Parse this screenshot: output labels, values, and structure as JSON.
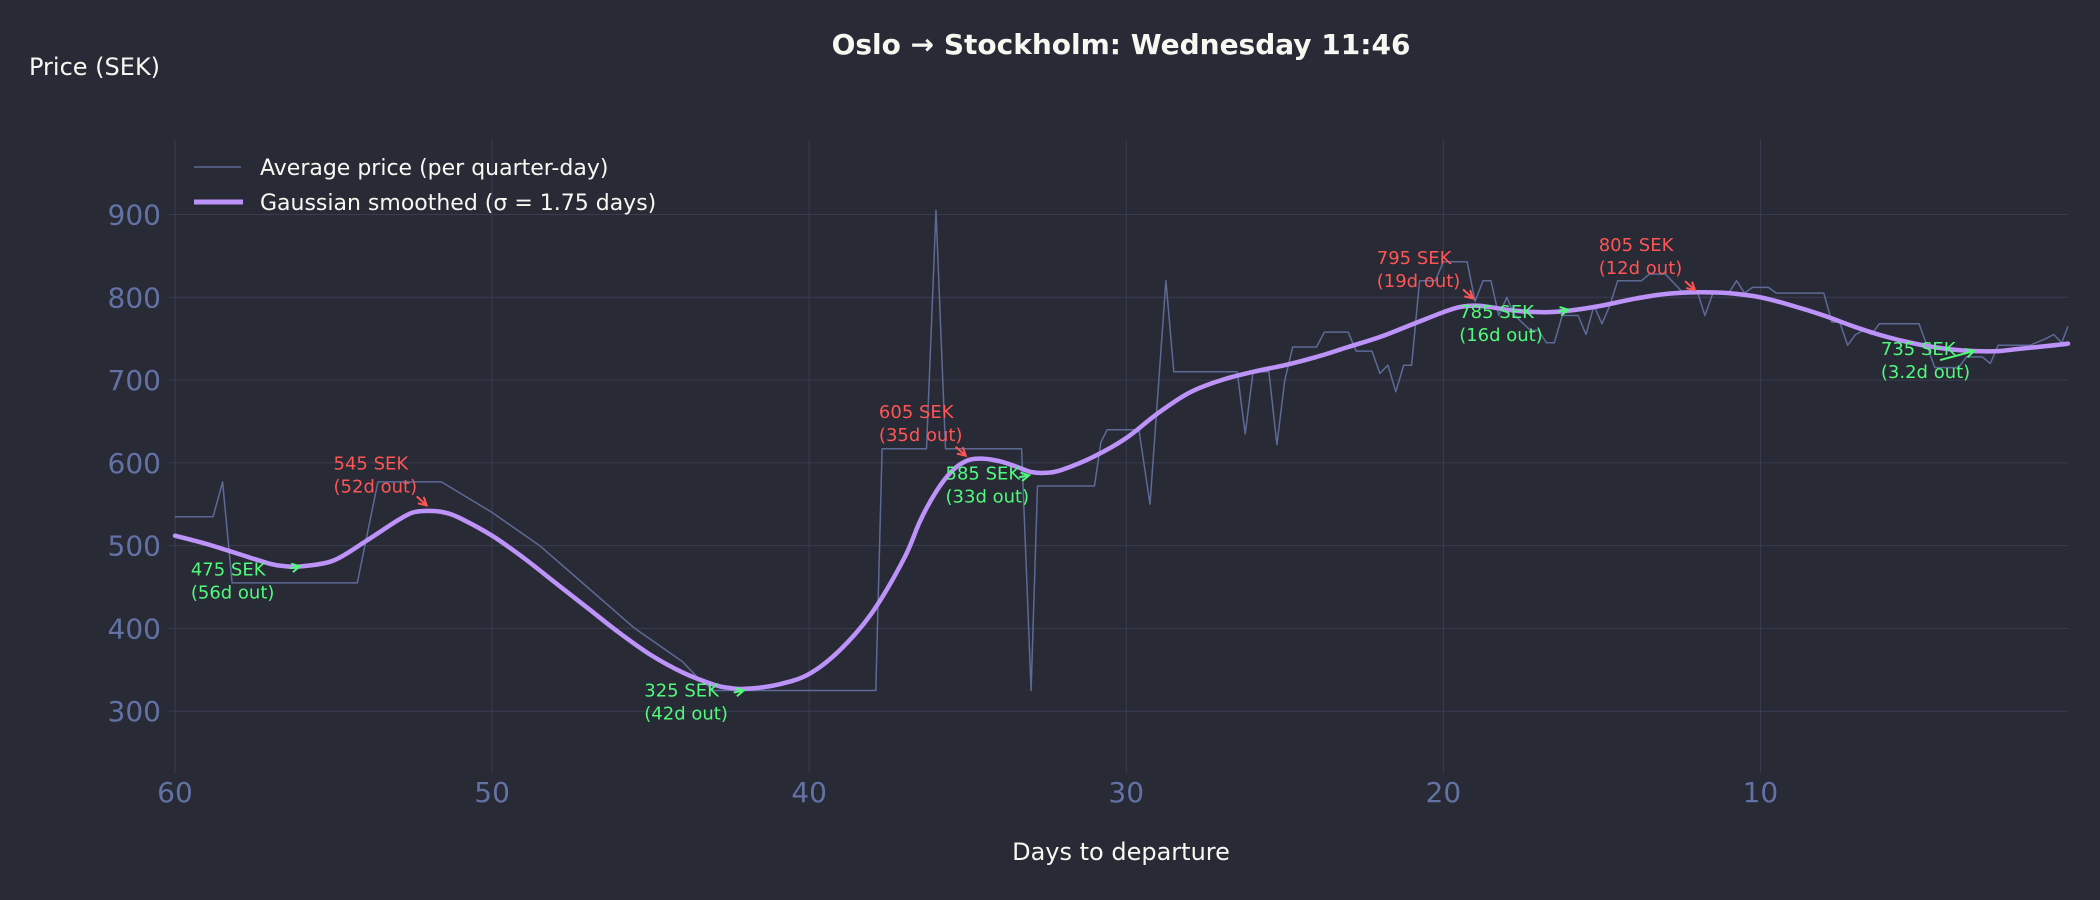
{
  "chart_data": {
    "type": "line",
    "title": "Oslo → Stockholm: Wednesday 11:46",
    "xlabel": "Days to departure",
    "ylabel": "Price (SEK)",
    "xlim": [
      60,
      0.3
    ],
    "ylim": [
      235,
      990
    ],
    "x_ticks": [
      60,
      50,
      40,
      30,
      20,
      10
    ],
    "y_ticks": [
      300,
      400,
      500,
      600,
      700,
      800,
      900
    ],
    "grid": true,
    "legend_position": "top-left",
    "colors": {
      "background": "#282a36",
      "grid": "#3a3d52",
      "raw": "#5d6a96",
      "smooth": "#bd93f9",
      "high": "#ff5555",
      "low": "#50fa7b",
      "text": "#f8f8f2",
      "tick": "#6272a4"
    },
    "series": [
      {
        "name": "Average price (per quarter-day)",
        "style": "thin",
        "points": [
          [
            60,
            535
          ],
          [
            58.8,
            535
          ],
          [
            58.5,
            577
          ],
          [
            58.2,
            455
          ],
          [
            57.5,
            455
          ],
          [
            56,
            455
          ],
          [
            54.25,
            455
          ],
          [
            53.6,
            577
          ],
          [
            51.6,
            577
          ],
          [
            50,
            540
          ],
          [
            48.5,
            500
          ],
          [
            47,
            450
          ],
          [
            45.5,
            400
          ],
          [
            44,
            360
          ],
          [
            43.5,
            340
          ],
          [
            43.0,
            325
          ],
          [
            40,
            325
          ],
          [
            37.9,
            325
          ],
          [
            37.7,
            617
          ],
          [
            36.3,
            617
          ],
          [
            36.0,
            905
          ],
          [
            35.7,
            617
          ],
          [
            33.3,
            617
          ],
          [
            33.0,
            325
          ],
          [
            32.8,
            572
          ],
          [
            31.0,
            572
          ],
          [
            30.8,
            625
          ],
          [
            30.6,
            640
          ],
          [
            29.8,
            640
          ],
          [
            29.6,
            640
          ],
          [
            29.25,
            550
          ],
          [
            28.75,
            820
          ],
          [
            28.5,
            710
          ],
          [
            26.5,
            710
          ],
          [
            26.25,
            635
          ],
          [
            26.0,
            710
          ],
          [
            25.5,
            710
          ],
          [
            25.25,
            622
          ],
          [
            25.0,
            700
          ],
          [
            24.75,
            740
          ],
          [
            24.0,
            740
          ],
          [
            23.75,
            758
          ],
          [
            23.0,
            758
          ],
          [
            22.75,
            735
          ],
          [
            22.25,
            735
          ],
          [
            22.0,
            708
          ],
          [
            21.75,
            718
          ],
          [
            21.5,
            686
          ],
          [
            21.25,
            718
          ],
          [
            21.0,
            718
          ],
          [
            20.75,
            820
          ],
          [
            20.25,
            820
          ],
          [
            20.0,
            843
          ],
          [
            19.25,
            843
          ],
          [
            19.0,
            795
          ],
          [
            18.75,
            820
          ],
          [
            18.5,
            820
          ],
          [
            18.25,
            778
          ],
          [
            18.0,
            800
          ],
          [
            17.75,
            778
          ],
          [
            17.25,
            760
          ],
          [
            17.0,
            760
          ],
          [
            16.75,
            745
          ],
          [
            16.5,
            745
          ],
          [
            16.25,
            778
          ],
          [
            15.75,
            778
          ],
          [
            15.5,
            755
          ],
          [
            15.25,
            790
          ],
          [
            15.0,
            768
          ],
          [
            14.75,
            790
          ],
          [
            14.5,
            820
          ],
          [
            13.75,
            820
          ],
          [
            13.5,
            828
          ],
          [
            13.0,
            828
          ],
          [
            12.5,
            808
          ],
          [
            12.0,
            808
          ],
          [
            11.75,
            778
          ],
          [
            11.5,
            805
          ],
          [
            11.0,
            805
          ],
          [
            10.75,
            820
          ],
          [
            10.5,
            805
          ],
          [
            10.25,
            812
          ],
          [
            9.75,
            812
          ],
          [
            9.5,
            805
          ],
          [
            8.0,
            805
          ],
          [
            7.75,
            770
          ],
          [
            7.5,
            770
          ],
          [
            7.25,
            742
          ],
          [
            7.0,
            755
          ],
          [
            6.75,
            760
          ],
          [
            6.5,
            755
          ],
          [
            6.25,
            768
          ],
          [
            5.0,
            768
          ],
          [
            4.75,
            742
          ],
          [
            4.5,
            715
          ],
          [
            4.25,
            715
          ],
          [
            3.75,
            715
          ],
          [
            3.5,
            728
          ],
          [
            3.0,
            728
          ],
          [
            2.75,
            720
          ],
          [
            2.5,
            742
          ],
          [
            2.0,
            742
          ],
          [
            1.5,
            742
          ],
          [
            1.0,
            750
          ],
          [
            0.75,
            755
          ],
          [
            0.5,
            745
          ],
          [
            0.3,
            765
          ]
        ]
      },
      {
        "name": "Gaussian smoothed (σ = 1.75 days)",
        "style": "thick",
        "points": [
          [
            60,
            512
          ],
          [
            59,
            502
          ],
          [
            58,
            490
          ],
          [
            57,
            478
          ],
          [
            56.5,
            475
          ],
          [
            56,
            475
          ],
          [
            55,
            482
          ],
          [
            54,
            505
          ],
          [
            53,
            530
          ],
          [
            52.5,
            540
          ],
          [
            52,
            542
          ],
          [
            51.5,
            540
          ],
          [
            51,
            533
          ],
          [
            50,
            512
          ],
          [
            49,
            485
          ],
          [
            48,
            455
          ],
          [
            47,
            425
          ],
          [
            46,
            395
          ],
          [
            45,
            368
          ],
          [
            44,
            347
          ],
          [
            43,
            332
          ],
          [
            42.5,
            328
          ],
          [
            42,
            327
          ],
          [
            41,
            332
          ],
          [
            40,
            345
          ],
          [
            39,
            375
          ],
          [
            38,
            420
          ],
          [
            37,
            485
          ],
          [
            36.5,
            530
          ],
          [
            36,
            565
          ],
          [
            35.5,
            590
          ],
          [
            35,
            603
          ],
          [
            34.5,
            605
          ],
          [
            34,
            602
          ],
          [
            33.5,
            596
          ],
          [
            33,
            589
          ],
          [
            32.5,
            588
          ],
          [
            32,
            592
          ],
          [
            31,
            608
          ],
          [
            30,
            630
          ],
          [
            29,
            660
          ],
          [
            28,
            685
          ],
          [
            27,
            700
          ],
          [
            26,
            710
          ],
          [
            25,
            718
          ],
          [
            24,
            728
          ],
          [
            23,
            740
          ],
          [
            22,
            752
          ],
          [
            21,
            767
          ],
          [
            20,
            782
          ],
          [
            19.5,
            788
          ],
          [
            19,
            790
          ],
          [
            18.5,
            788
          ],
          [
            18,
            785
          ],
          [
            17.5,
            783
          ],
          [
            16.75,
            782
          ],
          [
            16,
            784
          ],
          [
            15,
            790
          ],
          [
            14,
            798
          ],
          [
            13,
            804
          ],
          [
            12,
            806
          ],
          [
            11,
            805
          ],
          [
            10,
            800
          ],
          [
            9,
            790
          ],
          [
            8,
            778
          ],
          [
            7,
            764
          ],
          [
            6,
            752
          ],
          [
            5,
            743
          ],
          [
            4,
            737
          ],
          [
            3.2,
            735
          ],
          [
            2.5,
            735
          ],
          [
            2,
            737
          ],
          [
            1,
            741
          ],
          [
            0.3,
            744
          ]
        ]
      }
    ],
    "annotations": [
      {
        "kind": "high",
        "price": 545,
        "day": 52,
        "line1": "545 SEK",
        "line2": "(52d out)",
        "text_day": 55.0,
        "text_price": 592
      },
      {
        "kind": "low",
        "price": 475,
        "day": 56,
        "line1": "475 SEK",
        "line2": "(56d out)",
        "text_day": 59.5,
        "text_price": 464
      },
      {
        "kind": "low",
        "price": 325,
        "day": 42,
        "line1": "325 SEK",
        "line2": "(42d out)",
        "text_day": 45.2,
        "text_price": 318
      },
      {
        "kind": "high",
        "price": 605,
        "day": 35,
        "line1": "605 SEK",
        "line2": "(35d out)",
        "text_day": 37.8,
        "text_price": 654
      },
      {
        "kind": "low",
        "price": 585,
        "day": 33,
        "line1": "585 SEK",
        "line2": "(33d out)",
        "text_day": 35.7,
        "text_price": 580
      },
      {
        "kind": "high",
        "price": 795,
        "day": 19,
        "line1": "795 SEK",
        "line2": "(19d out)",
        "text_day": 22.1,
        "text_price": 840
      },
      {
        "kind": "low",
        "price": 785,
        "day": 16,
        "line1": "785 SEK",
        "line2": "(16d out)",
        "text_day": 19.5,
        "text_price": 775
      },
      {
        "kind": "high",
        "price": 805,
        "day": 12,
        "line1": "805 SEK",
        "line2": "(12d out)",
        "text_day": 15.1,
        "text_price": 856
      },
      {
        "kind": "low",
        "price": 735,
        "day": 3.2,
        "line1": "735 SEK",
        "line2": "(3.2d out)",
        "text_day": 6.2,
        "text_price": 730
      }
    ]
  }
}
